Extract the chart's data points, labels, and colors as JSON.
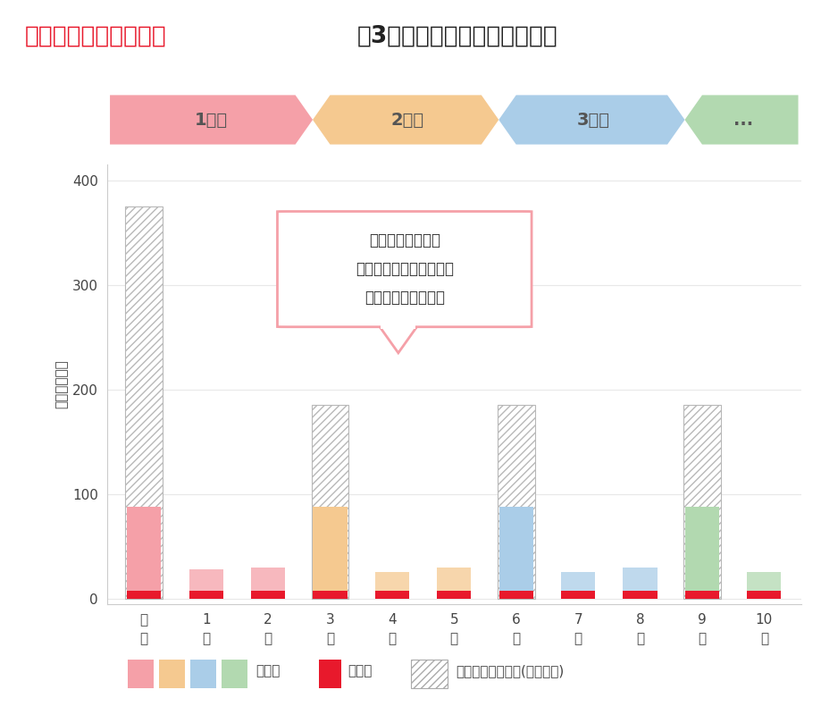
{
  "title_red": "残価設定型クレジット",
  "title_black": "（3年ごとに買い替え）の場合",
  "title_fontsize": 19,
  "banner_labels": [
    "1台目",
    "2台目",
    "3台目",
    "..."
  ],
  "banner_colors": [
    "#f5a0a8",
    "#f5c990",
    "#aacde8",
    "#b2d9b0"
  ],
  "xlabel_labels": [
    "購\n入",
    "1\n年",
    "2\n年",
    "3\n年",
    "4\n年",
    "5\n年",
    "6\n年",
    "7\n年",
    "8\n年",
    "9\n年",
    "10\n年"
  ],
  "ylabel": "金額（万円）",
  "yticks": [
    0,
    100,
    200,
    300,
    400
  ],
  "ylim": [
    -5,
    415
  ],
  "xlim": [
    -0.6,
    10.6
  ],
  "car_values": [
    80,
    0,
    0,
    80,
    0,
    0,
    80,
    0,
    0,
    80,
    0
  ],
  "monthly_values": [
    0,
    20,
    22,
    25,
    18,
    22,
    24,
    18,
    22,
    24,
    18
  ],
  "maintenance_values": [
    8,
    8,
    8,
    8,
    8,
    8,
    8,
    8,
    8,
    8,
    8
  ],
  "hatch_values": [
    375,
    0,
    0,
    185,
    0,
    0,
    185,
    0,
    0,
    185,
    0
  ],
  "car_colors": [
    "#f5a0a8",
    "#f5a0a8",
    "#f5a0a8",
    "#f5c990",
    "#f5c990",
    "#f5c990",
    "#aacde8",
    "#aacde8",
    "#aacde8",
    "#b2d9b0",
    "#b2d9b0"
  ],
  "maintenance_color": "#e8192c",
  "annotation_text": "現金購入に比べ、\nまとまった出費を抑えて\n買い替えが可能に！",
  "annotation_border_color": "#f5a0a8",
  "bg_color": "#ffffff",
  "grid_color": "#e8e8e8",
  "legend_car_colors": [
    "#f5a0a8",
    "#f5c990",
    "#aacde8",
    "#b2d9b0"
  ],
  "legend_car_label": "車両代",
  "legend_maint_label": "維持費",
  "legend_diff_label": "現金購入との差額(イメージ)",
  "maintenance_color_legend": "#e8192c"
}
